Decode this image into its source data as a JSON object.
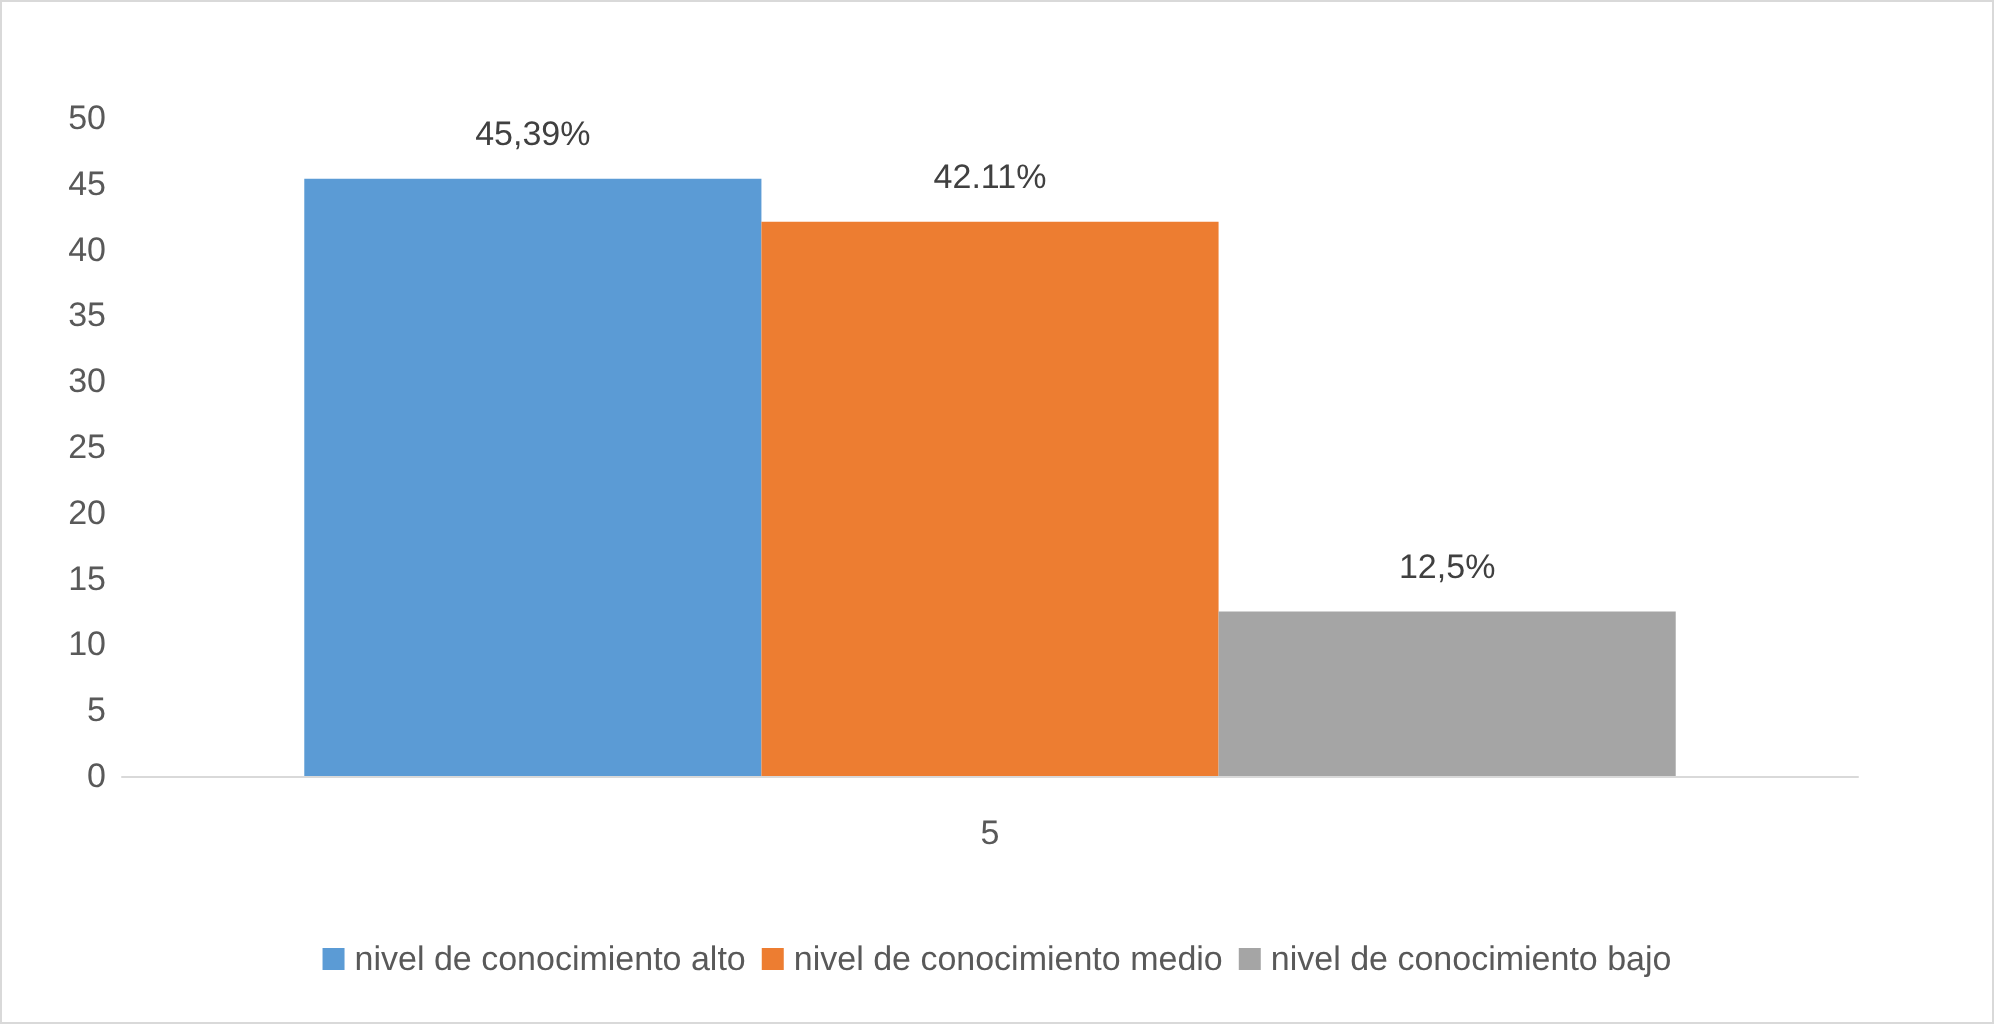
{
  "chart_data": {
    "type": "bar",
    "categories": [
      "5"
    ],
    "series": [
      {
        "name": "nivel de conocimiento alto",
        "color": "#5b9bd5",
        "values": [
          45.39
        ],
        "value_labels": [
          "45,39%"
        ]
      },
      {
        "name": "nivel de conocimiento medio",
        "color": "#ed7d31",
        "values": [
          42.11
        ],
        "value_labels": [
          "42.11%"
        ]
      },
      {
        "name": "nivel de conocimiento bajo",
        "color": "#a5a5a5",
        "values": [
          12.5
        ],
        "value_labels": [
          "12,5%"
        ]
      }
    ],
    "ylim": [
      0,
      50
    ],
    "yticks": [
      0,
      5,
      10,
      15,
      20,
      25,
      30,
      35,
      40,
      45,
      50
    ],
    "grid": false,
    "legend": "bottom"
  }
}
